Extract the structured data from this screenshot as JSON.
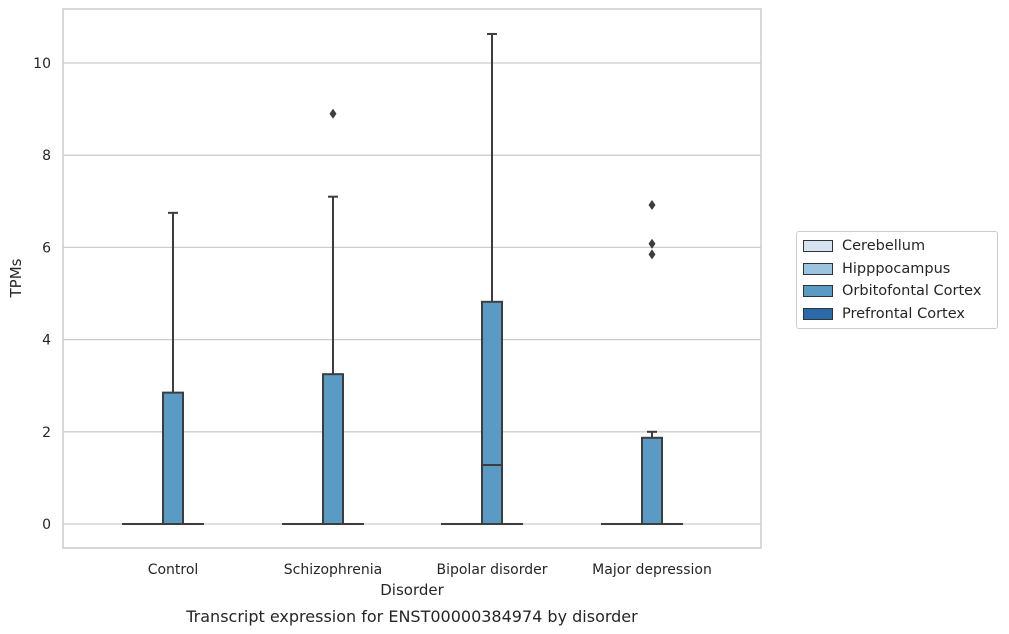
{
  "chart_data": {
    "type": "box",
    "title": "Transcript expression for ENST00000384974 by disorder",
    "xlabel": "Disorder",
    "ylabel": "TPMs",
    "categories": [
      "Control",
      "Schizophrenia",
      "Bipolar disorder",
      "Major depression"
    ],
    "ylim": [
      -0.5,
      11.2
    ],
    "yticks": [
      0,
      2,
      4,
      6,
      8,
      10
    ],
    "grid": "horizontal",
    "legend_position": "right",
    "series": [
      {
        "name": "Cerebellum",
        "color": "#d5e4f0",
        "boxes": [
          {
            "category": "Control",
            "min": 0,
            "q1": 0,
            "median": 0,
            "q3": 0,
            "max": 0,
            "outliers": []
          },
          {
            "category": "Schizophrenia",
            "min": 0,
            "q1": 0,
            "median": 0,
            "q3": 0,
            "max": 0,
            "outliers": []
          },
          {
            "category": "Bipolar disorder",
            "min": 0,
            "q1": 0,
            "median": 0,
            "q3": 0,
            "max": 0,
            "outliers": []
          },
          {
            "category": "Major depression",
            "min": 0,
            "q1": 0,
            "median": 0,
            "q3": 0,
            "max": 0,
            "outliers": []
          }
        ]
      },
      {
        "name": "Hipppocampus",
        "color": "#9ac4df",
        "boxes": [
          {
            "category": "Control",
            "min": 0,
            "q1": 0,
            "median": 0,
            "q3": 0,
            "max": 0,
            "outliers": []
          },
          {
            "category": "Schizophrenia",
            "min": 0,
            "q1": 0,
            "median": 0,
            "q3": 0,
            "max": 0,
            "outliers": []
          },
          {
            "category": "Bipolar disorder",
            "min": 0,
            "q1": 0,
            "median": 0,
            "q3": 0,
            "max": 0,
            "outliers": []
          },
          {
            "category": "Major depression",
            "min": 0,
            "q1": 0,
            "median": 0,
            "q3": 0,
            "max": 0,
            "outliers": []
          }
        ]
      },
      {
        "name": "Orbitofontal Cortex",
        "color": "#5a9bc6",
        "boxes": [
          {
            "category": "Control",
            "min": 0,
            "q1": 0,
            "median": 0,
            "q3": 2.85,
            "max": 6.75,
            "outliers": []
          },
          {
            "category": "Schizophrenia",
            "min": 0,
            "q1": 0,
            "median": 0,
            "q3": 3.25,
            "max": 7.1,
            "outliers": [
              8.9
            ]
          },
          {
            "category": "Bipolar disorder",
            "min": 0,
            "q1": 0,
            "median": 1.28,
            "q3": 4.82,
            "max": 10.63,
            "outliers": []
          },
          {
            "category": "Major depression",
            "min": 0,
            "q1": 0,
            "median": 0,
            "q3": 1.87,
            "max": 2.0,
            "outliers": [
              5.85,
              6.08,
              6.92
            ]
          }
        ]
      },
      {
        "name": "Prefrontal Cortex",
        "color": "#2a6aa8",
        "boxes": [
          {
            "category": "Control",
            "min": 0,
            "q1": 0,
            "median": 0,
            "q3": 0,
            "max": 0,
            "outliers": []
          },
          {
            "category": "Schizophrenia",
            "min": 0,
            "q1": 0,
            "median": 0,
            "q3": 0,
            "max": 0,
            "outliers": []
          },
          {
            "category": "Bipolar disorder",
            "min": 0,
            "q1": 0,
            "median": 0,
            "q3": 0,
            "max": 0,
            "outliers": []
          },
          {
            "category": "Major depression",
            "min": 0,
            "q1": 0,
            "median": 0,
            "q3": 0,
            "max": 0,
            "outliers": []
          }
        ]
      }
    ]
  }
}
